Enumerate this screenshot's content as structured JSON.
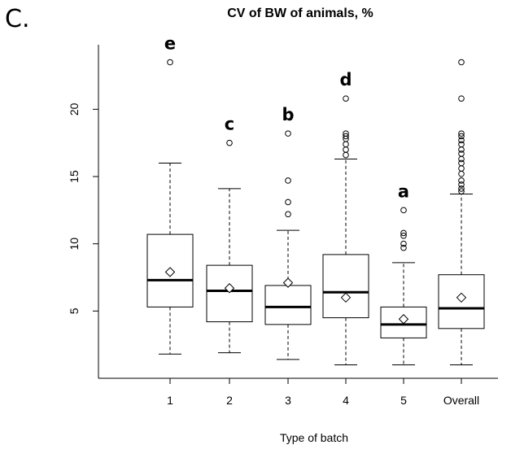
{
  "panel_label": "C.",
  "chart_data": {
    "type": "boxplot",
    "title": "CV of BW of animals, %",
    "xlabel": "Type of batch",
    "ylabel": "",
    "ylim": [
      0,
      24.8
    ],
    "yticks": [
      5,
      10,
      15,
      20
    ],
    "categories": [
      "1",
      "2",
      "3",
      "4",
      "5",
      "Overall"
    ],
    "boxes": [
      {
        "category": "1",
        "whisker_low": 1.8,
        "q1": 5.3,
        "median": 7.3,
        "q3": 10.7,
        "whisker_high": 16.0,
        "mean": 7.9,
        "outliers": [
          23.5
        ],
        "letter": "e"
      },
      {
        "category": "2",
        "whisker_low": 1.9,
        "q1": 4.2,
        "median": 6.5,
        "q3": 8.4,
        "whisker_high": 14.1,
        "mean": 6.7,
        "outliers": [
          17.5
        ],
        "letter": "c"
      },
      {
        "category": "3",
        "whisker_low": 1.4,
        "q1": 4.0,
        "median": 5.3,
        "q3": 6.9,
        "whisker_high": 11.0,
        "mean": 7.1,
        "outliers": [
          12.2,
          13.1,
          14.7,
          18.2
        ],
        "letter": "b"
      },
      {
        "category": "4",
        "whisker_low": 1.0,
        "q1": 4.5,
        "median": 6.4,
        "q3": 9.2,
        "whisker_high": 16.3,
        "mean": 6.0,
        "outliers": [
          16.6,
          17.0,
          17.4,
          17.8,
          18.0,
          18.2,
          20.8
        ],
        "letter": "d"
      },
      {
        "category": "5",
        "whisker_low": 1.0,
        "q1": 3.0,
        "median": 4.0,
        "q3": 5.3,
        "whisker_high": 8.6,
        "mean": 4.4,
        "outliers": [
          9.7,
          10.0,
          10.6,
          10.8,
          12.5
        ],
        "letter": "a"
      },
      {
        "category": "Overall",
        "whisker_low": 1.0,
        "q1": 3.7,
        "median": 5.2,
        "q3": 7.7,
        "whisker_high": 13.7,
        "mean": 6.0,
        "outliers": [
          13.9,
          14.1,
          14.4,
          14.7,
          15.2,
          15.6,
          16.0,
          16.3,
          16.7,
          17.0,
          17.4,
          17.7,
          18.0,
          18.2,
          20.8,
          23.5
        ],
        "letter": ""
      }
    ],
    "grid": false,
    "legend": "none"
  }
}
